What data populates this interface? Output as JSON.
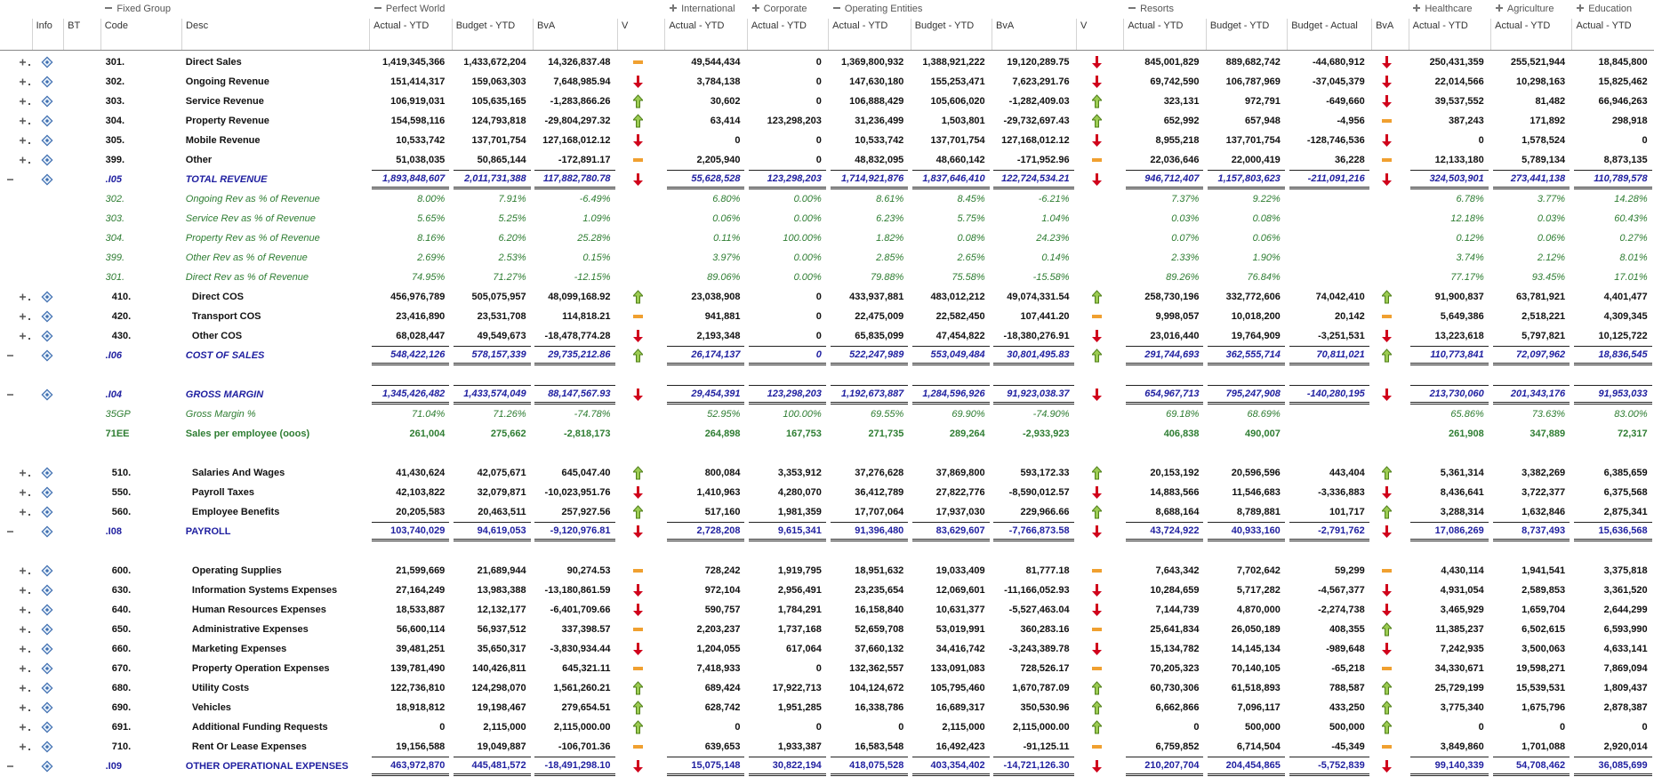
{
  "groups": [
    {
      "label": "Fixed Group",
      "expanded": true
    },
    {
      "label": "Perfect World",
      "expanded": true
    },
    {
      "label": "International",
      "expanded": false
    },
    {
      "label": "Corporate",
      "expanded": false
    },
    {
      "label": "Operating Entities",
      "expanded": true
    },
    {
      "label": "Resorts",
      "expanded": true
    },
    {
      "label": "Healthcare",
      "expanded": false
    },
    {
      "label": "Agriculture",
      "expanded": false
    },
    {
      "label": "Education",
      "expanded": false
    }
  ],
  "columns": [
    "Info",
    "BT",
    "Code",
    "Desc",
    "Actual - YTD",
    "Budget - YTD",
    "BvA",
    "V",
    "Actual - YTD",
    "Actual - YTD",
    "Actual - YTD",
    "Budget - YTD",
    "BvA",
    "V",
    "Actual - YTD",
    "Budget - YTD",
    "Budget - Actual",
    "BvA",
    "Actual - YTD",
    "Actual - YTD",
    "Actual - YTD"
  ],
  "rows": [
    {
      "code": "301.",
      "desc": "Direct Sales",
      "values": [
        "1,419,345,366",
        "1,433,672,204",
        "14,326,837.48",
        "49,544,434",
        "0",
        "1,369,800,932",
        "1,388,921,222",
        "19,120,289.75",
        "845,001,829",
        "889,682,742",
        "-44,680,912",
        "250,431,359",
        "255,521,944",
        "18,845,800"
      ],
      "status": [
        "flat",
        "down",
        "down"
      ]
    },
    {
      "code": "302.",
      "desc": "Ongoing Revenue",
      "values": [
        "151,414,317",
        "159,063,303",
        "7,648,985.94",
        "3,784,138",
        "0",
        "147,630,180",
        "155,253,471",
        "7,623,291.76",
        "69,742,590",
        "106,787,969",
        "-37,045,379",
        "22,014,566",
        "10,298,163",
        "15,825,462"
      ],
      "status": [
        "down",
        "down",
        "down"
      ]
    },
    {
      "code": "303.",
      "desc": "Service Revenue",
      "values": [
        "106,919,031",
        "105,635,165",
        "-1,283,866.26",
        "30,602",
        "0",
        "106,888,429",
        "105,606,020",
        "-1,282,409.03",
        "323,131",
        "972,791",
        "-649,660",
        "39,537,552",
        "81,482",
        "66,946,263"
      ],
      "status": [
        "up",
        "up",
        "down"
      ]
    },
    {
      "code": "304.",
      "desc": "Property Revenue",
      "values": [
        "154,598,116",
        "124,793,818",
        "-29,804,297.32",
        "63,414",
        "123,298,203",
        "31,236,499",
        "1,503,801",
        "-29,732,697.43",
        "652,992",
        "657,948",
        "-4,956",
        "387,243",
        "171,892",
        "298,918"
      ],
      "status": [
        "up",
        "up",
        "flat"
      ]
    },
    {
      "code": "305.",
      "desc": "Mobile Revenue",
      "values": [
        "10,533,742",
        "137,701,754",
        "127,168,012.12",
        "0",
        "0",
        "10,533,742",
        "137,701,754",
        "127,168,012.12",
        "8,955,218",
        "137,701,754",
        "-128,746,536",
        "0",
        "1,578,524",
        "0"
      ],
      "status": [
        "down",
        "down",
        "down"
      ]
    },
    {
      "code": "399.",
      "desc": "Other",
      "values": [
        "51,038,035",
        "50,865,144",
        "-172,891.17",
        "2,205,940",
        "0",
        "48,832,095",
        "48,660,142",
        "-171,952.96",
        "22,036,646",
        "22,000,419",
        "36,228",
        "12,133,180",
        "5,789,134",
        "8,873,135"
      ],
      "status": [
        "flat",
        "flat",
        "flat"
      ]
    },
    {
      "code": ".I05",
      "desc": "TOTAL REVENUE",
      "values": [
        "1,893,848,607",
        "2,011,731,388",
        "117,882,780.78",
        "55,628,528",
        "123,298,203",
        "1,714,921,876",
        "1,837,646,410",
        "122,724,534.21",
        "946,712,407",
        "1,157,803,623",
        "-211,091,216",
        "324,503,901",
        "273,441,138",
        "110,789,578"
      ],
      "status": [
        "down",
        "down",
        "down"
      ]
    },
    {
      "code": "302.",
      "desc": "Ongoing Rev as % of Revenue",
      "values": [
        "8.00%",
        "7.91%",
        "-6.49%",
        "6.80%",
        "0.00%",
        "8.61%",
        "8.45%",
        "-6.21%",
        "7.37%",
        "9.22%",
        null,
        "6.78%",
        "3.77%",
        "14.28%"
      ]
    },
    {
      "code": "303.",
      "desc": "Service Rev as % of Revenue",
      "values": [
        "5.65%",
        "5.25%",
        "1.09%",
        "0.06%",
        "0.00%",
        "6.23%",
        "5.75%",
        "1.04%",
        "0.03%",
        "0.08%",
        null,
        "12.18%",
        "0.03%",
        "60.43%"
      ]
    },
    {
      "code": "304.",
      "desc": "Property Rev as % of Revenue",
      "values": [
        "8.16%",
        "6.20%",
        "25.28%",
        "0.11%",
        "100.00%",
        "1.82%",
        "0.08%",
        "24.23%",
        "0.07%",
        "0.06%",
        null,
        "0.12%",
        "0.06%",
        "0.27%"
      ]
    },
    {
      "code": "399.",
      "desc": "Other Rev as % of Revenue",
      "values": [
        "2.69%",
        "2.53%",
        "0.15%",
        "3.97%",
        "0.00%",
        "2.85%",
        "2.65%",
        "0.14%",
        "2.33%",
        "1.90%",
        null,
        "3.74%",
        "2.12%",
        "8.01%"
      ]
    },
    {
      "code": "301.",
      "desc": "Direct Rev as % of Revenue",
      "values": [
        "74.95%",
        "71.27%",
        "-12.15%",
        "89.06%",
        "0.00%",
        "79.88%",
        "75.58%",
        "-15.58%",
        "89.26%",
        "76.84%",
        null,
        "77.17%",
        "93.45%",
        "17.01%"
      ]
    },
    {
      "code": "410.",
      "desc": "Direct COS",
      "values": [
        "456,976,789",
        "505,075,957",
        "48,099,168.92",
        "23,038,908",
        "0",
        "433,937,881",
        "483,012,212",
        "49,074,331.54",
        "258,730,196",
        "332,772,606",
        "74,042,410",
        "91,900,837",
        "63,781,921",
        "4,401,477"
      ],
      "status": [
        "up",
        "up",
        "up"
      ]
    },
    {
      "code": "420.",
      "desc": "Transport COS",
      "values": [
        "23,416,890",
        "23,531,708",
        "114,818.21",
        "941,881",
        "0",
        "22,475,009",
        "22,582,450",
        "107,441.20",
        "9,998,057",
        "10,018,200",
        "20,142",
        "5,649,386",
        "2,518,221",
        "4,309,345"
      ],
      "status": [
        "flat",
        "flat",
        "flat"
      ]
    },
    {
      "code": "430.",
      "desc": "Other COS",
      "values": [
        "68,028,447",
        "49,549,673",
        "-18,478,774.28",
        "2,193,348",
        "0",
        "65,835,099",
        "47,454,822",
        "-18,380,276.91",
        "23,016,440",
        "19,764,909",
        "-3,251,531",
        "13,223,618",
        "5,797,821",
        "10,125,722"
      ],
      "status": [
        "down",
        "down",
        "down"
      ]
    },
    {
      "code": ".I06",
      "desc": "COST OF SALES",
      "values": [
        "548,422,126",
        "578,157,339",
        "29,735,212.86",
        "26,174,137",
        "0",
        "522,247,989",
        "553,049,484",
        "30,801,495.83",
        "291,744,693",
        "362,555,714",
        "70,811,021",
        "110,773,841",
        "72,097,962",
        "18,836,545"
      ],
      "status": [
        "up",
        "up",
        "up"
      ]
    },
    null,
    {
      "code": ".I04",
      "desc": "GROSS MARGIN",
      "values": [
        "1,345,426,482",
        "1,433,574,049",
        "88,147,567.93",
        "29,454,391",
        "123,298,203",
        "1,192,673,887",
        "1,284,596,926",
        "91,923,038.37",
        "654,967,713",
        "795,247,908",
        "-140,280,195",
        "213,730,060",
        "201,343,176",
        "91,953,033"
      ],
      "status": [
        "down",
        "down",
        "down"
      ]
    },
    {
      "code": "35GP",
      "desc": "Gross Margin %",
      "values": [
        "71.04%",
        "71.26%",
        "-74.78%",
        "52.95%",
        "100.00%",
        "69.55%",
        "69.90%",
        "-74.90%",
        "69.18%",
        "68.69%",
        null,
        "65.86%",
        "73.63%",
        "83.00%"
      ]
    },
    {
      "code": "71EE",
      "desc": "Sales per employee (ooos)",
      "values": [
        "261,004",
        "275,662",
        "-2,818,173",
        "264,898",
        "167,753",
        "271,735",
        "289,264",
        "-2,933,923",
        "406,838",
        "490,007",
        null,
        "261,908",
        "347,889",
        "72,317"
      ]
    },
    null,
    {
      "code": "510.",
      "desc": "Salaries And Wages",
      "values": [
        "41,430,624",
        "42,075,671",
        "645,047.40",
        "800,084",
        "3,353,912",
        "37,276,628",
        "37,869,800",
        "593,172.33",
        "20,153,192",
        "20,596,596",
        "443,404",
        "5,361,314",
        "3,382,269",
        "6,385,659"
      ],
      "status": [
        "up",
        "up",
        "up"
      ]
    },
    {
      "code": "550.",
      "desc": "Payroll Taxes",
      "values": [
        "42,103,822",
        "32,079,871",
        "-10,023,951.76",
        "1,410,963",
        "4,280,070",
        "36,412,789",
        "27,822,776",
        "-8,590,012.57",
        "14,883,566",
        "11,546,683",
        "-3,336,883",
        "8,436,641",
        "3,722,377",
        "6,375,568"
      ],
      "status": [
        "down",
        "down",
        "down"
      ]
    },
    {
      "code": "560.",
      "desc": "Employee Benefits",
      "values": [
        "20,205,583",
        "20,463,511",
        "257,927.56",
        "517,160",
        "1,981,359",
        "17,707,064",
        "17,937,030",
        "229,966.66",
        "8,688,164",
        "8,789,881",
        "101,717",
        "3,288,314",
        "1,632,846",
        "2,875,341"
      ],
      "status": [
        "up",
        "up",
        "up"
      ]
    },
    {
      "code": ".I08",
      "desc": "PAYROLL",
      "values": [
        "103,740,029",
        "94,619,053",
        "-9,120,976.81",
        "2,728,208",
        "9,615,341",
        "91,396,480",
        "83,629,607",
        "-7,766,873.58",
        "43,724,922",
        "40,933,160",
        "-2,791,762",
        "17,086,269",
        "8,737,493",
        "15,636,568"
      ],
      "status": [
        "down",
        "down",
        "down"
      ]
    },
    null,
    {
      "code": "600.",
      "desc": "Operating Supplies",
      "values": [
        "21,599,669",
        "21,689,944",
        "90,274.53",
        "728,242",
        "1,919,795",
        "18,951,632",
        "19,033,409",
        "81,777.18",
        "7,643,342",
        "7,702,642",
        "59,299",
        "4,430,114",
        "1,941,541",
        "3,375,818"
      ],
      "status": [
        "flat",
        "flat",
        "flat"
      ]
    },
    {
      "code": "630.",
      "desc": "Information Systems Expenses",
      "values": [
        "27,164,249",
        "13,983,388",
        "-13,180,861.59",
        "972,104",
        "2,956,491",
        "23,235,654",
        "12,069,601",
        "-11,166,052.93",
        "10,284,659",
        "5,717,282",
        "-4,567,377",
        "4,931,054",
        "2,589,853",
        "3,361,520"
      ],
      "status": [
        "down",
        "down",
        "down"
      ]
    },
    {
      "code": "640.",
      "desc": "Human Resources Expenses",
      "values": [
        "18,533,887",
        "12,132,177",
        "-6,401,709.66",
        "590,757",
        "1,784,291",
        "16,158,840",
        "10,631,377",
        "-5,527,463.04",
        "7,144,739",
        "4,870,000",
        "-2,274,738",
        "3,465,929",
        "1,659,704",
        "2,644,299"
      ],
      "status": [
        "down",
        "down",
        "down"
      ]
    },
    {
      "code": "650.",
      "desc": "Administrative Expenses",
      "values": [
        "56,600,114",
        "56,937,512",
        "337,398.57",
        "2,203,237",
        "1,737,168",
        "52,659,708",
        "53,019,991",
        "360,283.16",
        "25,641,834",
        "26,050,189",
        "408,355",
        "11,385,237",
        "6,502,615",
        "6,593,990"
      ],
      "status": [
        "flat",
        "flat",
        "up"
      ]
    },
    {
      "code": "660.",
      "desc": "Marketing Expenses",
      "values": [
        "39,481,251",
        "35,650,317",
        "-3,830,934.44",
        "1,204,055",
        "617,064",
        "37,660,132",
        "34,416,742",
        "-3,243,389.78",
        "15,134,782",
        "14,145,134",
        "-989,648",
        "7,242,935",
        "3,500,063",
        "4,633,141"
      ],
      "status": [
        "down",
        "down",
        "down"
      ]
    },
    {
      "code": "670.",
      "desc": "Property Operation Expenses",
      "values": [
        "139,781,490",
        "140,426,811",
        "645,321.11",
        "7,418,933",
        "0",
        "132,362,557",
        "133,091,083",
        "728,526.17",
        "70,205,323",
        "70,140,105",
        "-65,218",
        "34,330,671",
        "19,598,271",
        "7,869,094"
      ],
      "status": [
        "flat",
        "flat",
        "flat"
      ]
    },
    {
      "code": "680.",
      "desc": "Utility Costs",
      "values": [
        "122,736,810",
        "124,298,070",
        "1,561,260.21",
        "689,424",
        "17,922,713",
        "104,124,672",
        "105,795,460",
        "1,670,787.09",
        "60,730,306",
        "61,518,893",
        "788,587",
        "25,729,199",
        "15,539,531",
        "1,809,437"
      ],
      "status": [
        "up",
        "up",
        "up"
      ]
    },
    {
      "code": "690.",
      "desc": "Vehicles",
      "values": [
        "18,918,812",
        "19,198,467",
        "279,654.51",
        "628,742",
        "1,951,285",
        "16,338,786",
        "16,689,317",
        "350,530.96",
        "6,662,866",
        "7,096,117",
        "433,250",
        "3,775,340",
        "1,675,796",
        "2,878,387"
      ],
      "status": [
        "up",
        "up",
        "up"
      ]
    },
    {
      "code": "691.",
      "desc": "Additional Funding Requests",
      "values": [
        "0",
        "2,115,000",
        "2,115,000.00",
        "0",
        "0",
        "0",
        "2,115,000",
        "2,115,000.00",
        "0",
        "500,000",
        "500,000",
        "0",
        "0",
        "0"
      ],
      "status": [
        "up",
        "up",
        "up"
      ]
    },
    {
      "code": "710.",
      "desc": "Rent Or Lease Expenses",
      "values": [
        "19,156,588",
        "19,049,887",
        "-106,701.36",
        "639,653",
        "1,933,387",
        "16,583,548",
        "16,492,423",
        "-91,125.11",
        "6,759,852",
        "6,714,504",
        "-45,349",
        "3,849,860",
        "1,701,088",
        "2,920,014"
      ],
      "status": [
        "flat",
        "flat",
        "flat"
      ]
    },
    {
      "code": ".I09",
      "desc": "OTHER OPERATIONAL EXPENSES",
      "values": [
        "463,972,870",
        "445,481,572",
        "-18,491,298.10",
        "15,075,148",
        "30,822,194",
        "418,075,528",
        "403,354,402",
        "-14,721,126.30",
        "210,207,704",
        "204,454,865",
        "-5,752,839",
        "99,140,339",
        "54,708,462",
        "36,085,699"
      ],
      "status": [
        "down",
        "down",
        "down"
      ]
    }
  ]
}
